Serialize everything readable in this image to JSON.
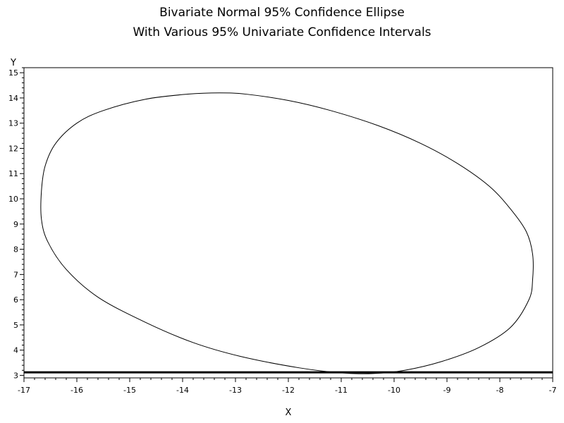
{
  "chart_data": {
    "type": "line",
    "title": "Bivariate Normal 95% Confidence Ellipse",
    "subtitle": "With Various 95% Univariate Confidence Intervals",
    "xlabel": "X",
    "ylabel": "Y",
    "xlim": [
      -17,
      -7
    ],
    "ylim": [
      2.9,
      15.2
    ],
    "x_ticks": [
      -17,
      -16,
      -15,
      -14,
      -13,
      -12,
      -11,
      -10,
      -9,
      -8,
      -7
    ],
    "y_ticks": [
      3,
      4,
      5,
      6,
      7,
      8,
      9,
      10,
      11,
      12,
      13,
      14,
      15
    ],
    "x_minor_per_major": 5,
    "y_minor_per_major": 5,
    "grid": false,
    "legend": "none",
    "series": [
      {
        "kind": "ellipse",
        "stroke": "#000000",
        "points": [
          [
            -16.67,
            10.3
          ],
          [
            -16.6,
            11.3
          ],
          [
            -16.4,
            12.2
          ],
          [
            -16.0,
            13.0
          ],
          [
            -15.5,
            13.5
          ],
          [
            -14.7,
            13.95
          ],
          [
            -13.9,
            14.15
          ],
          [
            -13.3,
            14.2
          ],
          [
            -12.8,
            14.15
          ],
          [
            -12.0,
            13.9
          ],
          [
            -11.2,
            13.5
          ],
          [
            -10.3,
            12.9
          ],
          [
            -9.5,
            12.2
          ],
          [
            -8.8,
            11.4
          ],
          [
            -8.2,
            10.5
          ],
          [
            -7.8,
            9.6
          ],
          [
            -7.5,
            8.7
          ],
          [
            -7.38,
            7.8
          ],
          [
            -7.38,
            6.8
          ],
          [
            -7.45,
            6.0
          ],
          [
            -7.8,
            4.9
          ],
          [
            -8.4,
            4.1
          ],
          [
            -9.1,
            3.55
          ],
          [
            -9.8,
            3.2
          ],
          [
            -10.4,
            3.07
          ],
          [
            -11.0,
            3.1
          ],
          [
            -11.8,
            3.3
          ],
          [
            -12.9,
            3.75
          ],
          [
            -13.8,
            4.3
          ],
          [
            -14.7,
            5.1
          ],
          [
            -15.6,
            6.1
          ],
          [
            -16.2,
            7.2
          ],
          [
            -16.55,
            8.3
          ],
          [
            -16.67,
            9.2
          ],
          [
            -16.67,
            10.3
          ]
        ]
      },
      {
        "kind": "hline",
        "y": 3.12,
        "stroke": "#000000"
      }
    ]
  }
}
